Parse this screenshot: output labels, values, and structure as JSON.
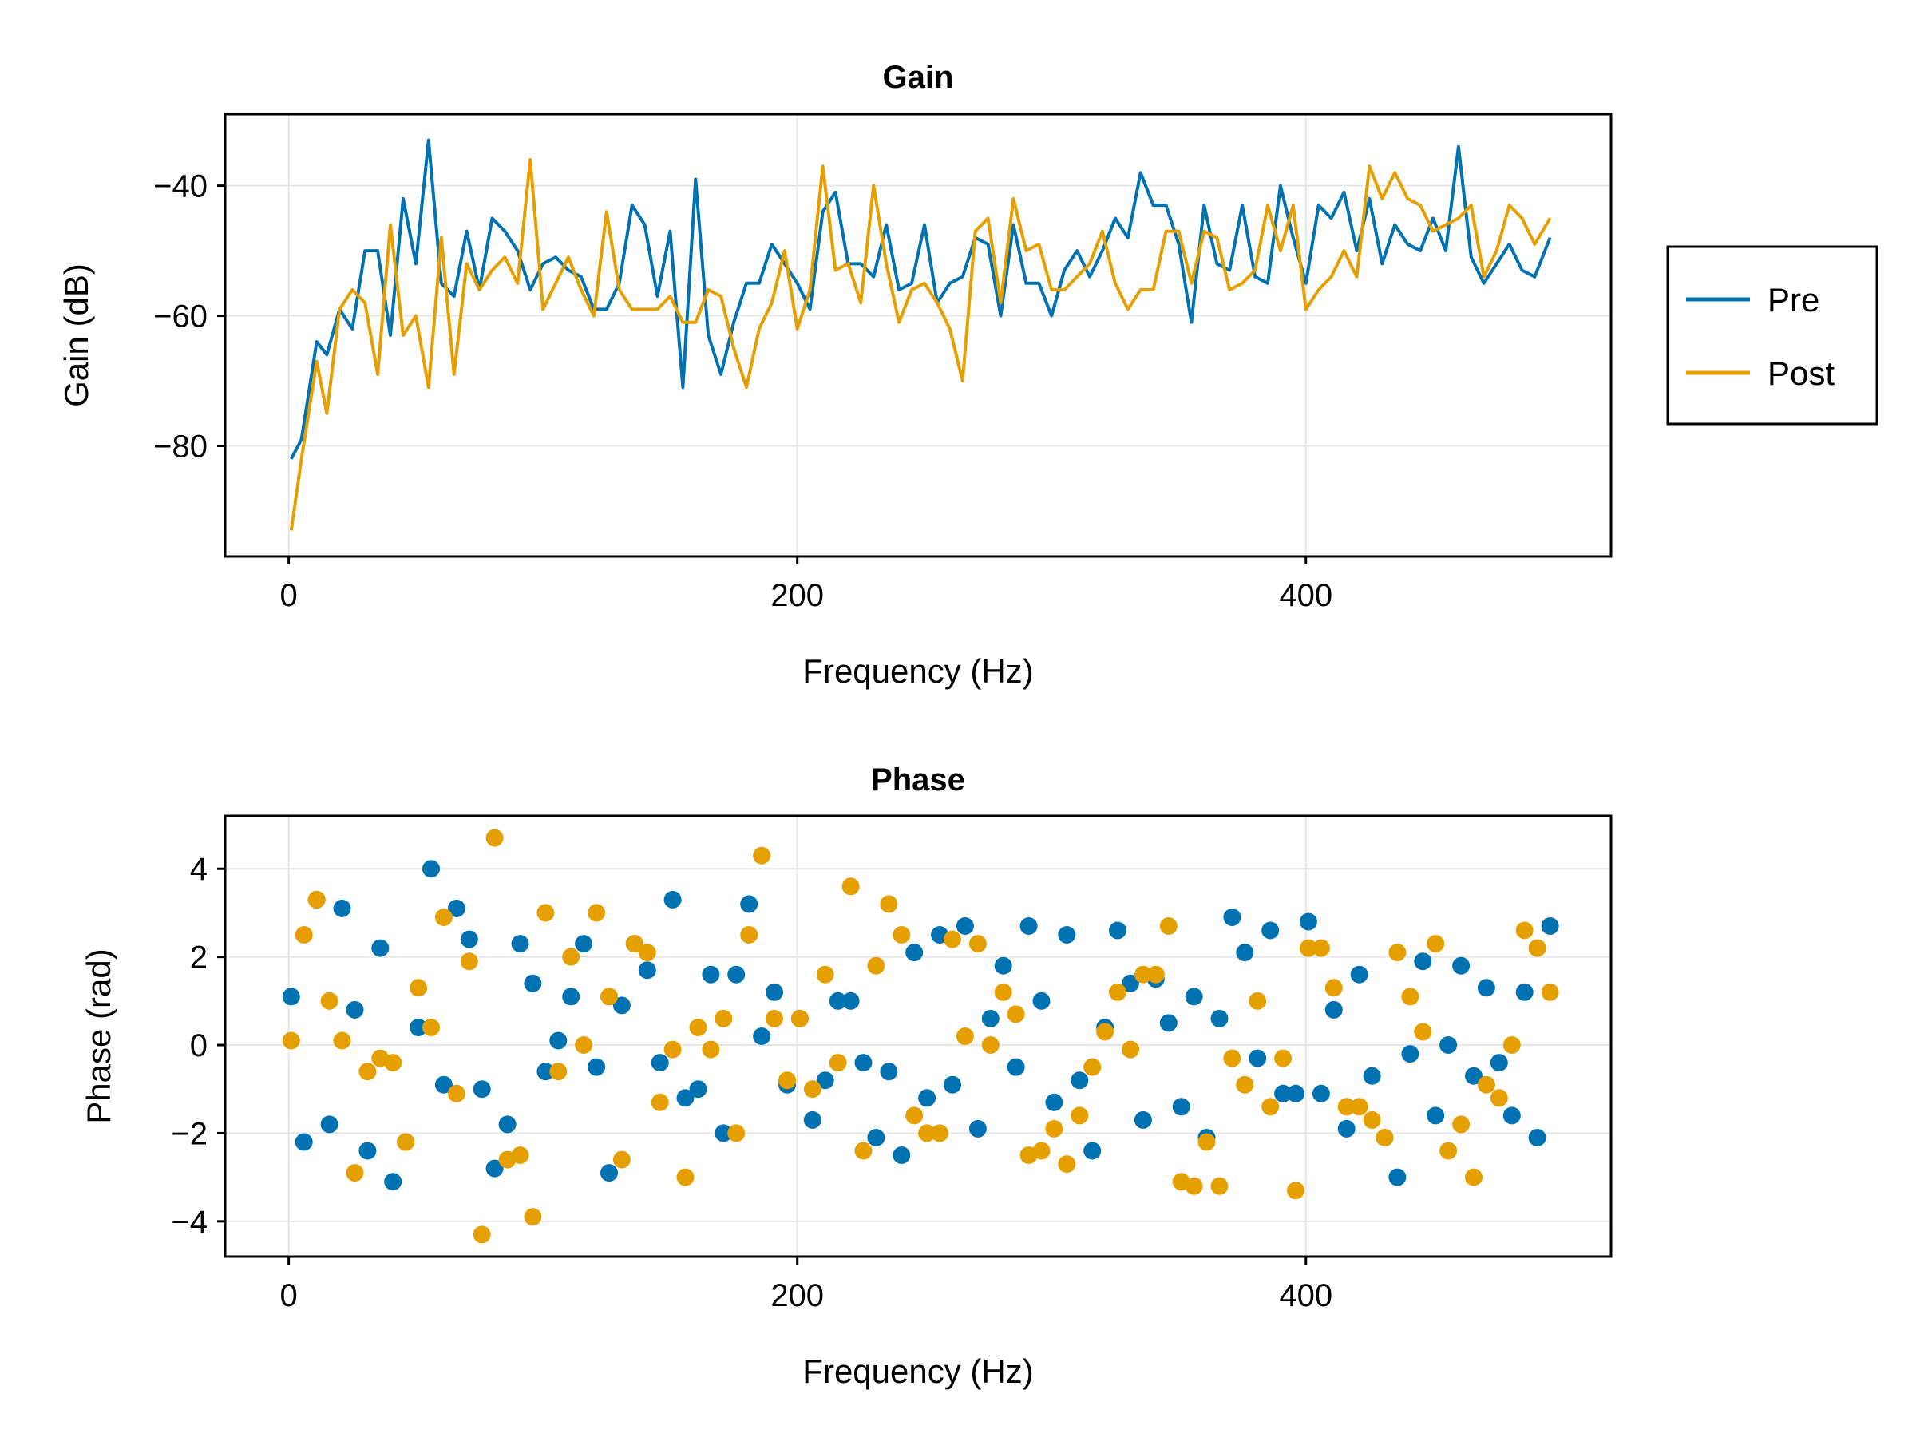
{
  "colors": {
    "pre": "#0072b2",
    "post": "#e69f00",
    "grid": "#e6e6e6",
    "axis": "#000000"
  },
  "legend": {
    "placement": "right",
    "entries": [
      "Pre",
      "Post"
    ]
  },
  "chart_data": [
    {
      "type": "line",
      "title": "Gain",
      "xlabel": "Frequency (Hz)",
      "ylabel": "Gain (dB)",
      "xlim": [
        -25,
        520
      ],
      "ylim": [
        -97,
        -29
      ],
      "xticks": [
        0,
        200,
        400
      ],
      "yticks": [
        -40,
        -60,
        -80
      ],
      "xtick_labels": [
        "0",
        "200",
        "400"
      ],
      "ytick_labels": [
        "−40",
        "−60",
        "−80"
      ],
      "grid": true,
      "x": [
        1,
        5,
        11,
        15,
        20,
        25,
        30,
        35,
        40,
        45,
        50,
        55,
        60,
        65,
        70,
        75,
        80,
        85,
        90,
        95,
        100,
        105,
        110,
        115,
        120,
        125,
        130,
        135,
        140,
        145,
        150,
        155,
        160,
        165,
        170,
        175,
        180,
        185,
        190,
        195,
        200,
        205,
        210,
        215,
        220,
        225,
        230,
        235,
        240,
        245,
        250,
        255,
        260,
        265,
        270,
        275,
        280,
        285,
        290,
        295,
        300,
        305,
        310,
        315,
        320,
        325,
        330,
        335,
        340,
        345,
        350,
        355,
        360,
        365,
        370,
        375,
        380,
        385,
        390,
        395,
        400,
        405,
        410,
        415,
        420,
        425,
        430,
        435,
        440,
        445,
        450,
        455,
        460,
        465,
        470,
        475,
        480,
        485,
        490,
        496
      ],
      "series": [
        {
          "name": "Pre",
          "values": [
            -82,
            -79,
            -64,
            -66,
            -59,
            -62,
            -50,
            -50,
            -63,
            -42,
            -52,
            -33,
            -55,
            -57,
            -47,
            -56,
            -45,
            -47,
            -50,
            -56,
            -52,
            -51,
            -53,
            -54,
            -59,
            -59,
            -55,
            -43,
            -46,
            -57,
            -47,
            -71,
            -39,
            -63,
            -69,
            -61,
            -55,
            -55,
            -49,
            -52,
            -55,
            -59,
            -44,
            -41,
            -52,
            -52,
            -54,
            -46,
            -56,
            -55,
            -46,
            -58,
            -55,
            -54,
            -48,
            -49,
            -60,
            -46,
            -55,
            -55,
            -60,
            -53,
            -50,
            -54,
            -50,
            -45,
            -48,
            -38,
            -43,
            -43,
            -49,
            -61,
            -43,
            -52,
            -53,
            -43,
            -54,
            -55,
            -40,
            -48,
            -55,
            -43,
            -45,
            -41,
            -50,
            -42,
            -52,
            -46,
            -49,
            -50,
            -45,
            -50,
            -34,
            -51,
            -55,
            -52,
            -49,
            -53,
            -54,
            -48
          ]
        },
        {
          "name": "Post",
          "values": [
            -93,
            -82,
            -67,
            -75,
            -59,
            -56,
            -58,
            -69,
            -46,
            -63,
            -60,
            -71,
            -48,
            -69,
            -52,
            -56,
            -53,
            -51,
            -55,
            -36,
            -59,
            -55,
            -51,
            -56,
            -60,
            -44,
            -56,
            -59,
            -59,
            -59,
            -57,
            -61,
            -61,
            -56,
            -57,
            -65,
            -71,
            -62,
            -58,
            -50,
            -62,
            -56,
            -37,
            -53,
            -52,
            -58,
            -40,
            -52,
            -61,
            -56,
            -55,
            -58,
            -62,
            -70,
            -47,
            -45,
            -58,
            -42,
            -50,
            -49,
            -56,
            -56,
            -54,
            -52,
            -47,
            -55,
            -59,
            -56,
            -56,
            -47,
            -47,
            -55,
            -47,
            -48,
            -56,
            -55,
            -53,
            -43,
            -50,
            -43,
            -59,
            -56,
            -54,
            -50,
            -54,
            -37,
            -42,
            -38,
            -42,
            -43,
            -47,
            -46,
            -45,
            -43,
            -54,
            -50,
            -43,
            -45,
            -49,
            -45
          ]
        }
      ]
    },
    {
      "type": "scatter",
      "title": "Phase",
      "xlabel": "Frequency (Hz)",
      "ylabel": "Phase (rad)",
      "xlim": [
        -25,
        520
      ],
      "ylim": [
        -4.8,
        5.2
      ],
      "xticks": [
        0,
        200,
        400
      ],
      "yticks": [
        4,
        2,
        0,
        -2,
        -4
      ],
      "xtick_labels": [
        "0",
        "200",
        "400"
      ],
      "ytick_labels": [
        "4",
        "2",
        "0",
        "−2",
        "−4"
      ],
      "grid": true,
      "x": [
        1,
        6,
        11,
        16,
        21,
        26,
        31,
        36,
        41,
        46,
        51,
        56,
        61,
        66,
        71,
        76,
        81,
        86,
        91,
        96,
        101,
        106,
        111,
        116,
        121,
        126,
        131,
        136,
        141,
        146,
        151,
        156,
        161,
        166,
        171,
        176,
        181,
        186,
        191,
        196,
        201,
        206,
        211,
        216,
        221,
        226,
        231,
        236,
        241,
        246,
        251,
        256,
        261,
        266,
        271,
        276,
        281,
        286,
        291,
        296,
        301,
        306,
        311,
        316,
        321,
        326,
        331,
        336,
        341,
        346,
        351,
        356,
        361,
        366,
        371,
        376,
        381,
        386,
        391,
        396,
        401,
        406,
        411,
        416,
        421,
        426,
        431,
        436,
        441,
        446,
        451,
        456,
        461,
        466,
        471,
        476,
        481,
        486,
        491,
        496
      ],
      "series": [
        {
          "name": "Pre",
          "values": [
            1.1,
            -2.2,
            3.3,
            -1.8,
            3.1,
            0.8,
            -2.4,
            2.2,
            -3.1,
            -2.2,
            0.4,
            4.0,
            -0.9,
            3.1,
            2.4,
            -1.0,
            -2.8,
            -1.8,
            2.3,
            1.4,
            -0.6,
            0.1,
            1.1,
            2.3,
            -0.5,
            -2.9,
            0.9,
            2.3,
            1.7,
            -0.4,
            3.3,
            -1.2,
            -1.0,
            1.6,
            -2.0,
            1.6,
            3.2,
            0.2,
            1.2,
            -0.9,
            0.6,
            -1.7,
            -0.8,
            1.0,
            1.0,
            -0.4,
            -2.1,
            -0.6,
            -2.5,
            2.1,
            -1.2,
            2.5,
            -0.9,
            2.7,
            -1.9,
            0.6,
            1.8,
            -0.5,
            2.7,
            1.0,
            -1.3,
            2.5,
            -0.8,
            -2.4,
            0.4,
            2.6,
            1.4,
            -1.7,
            1.5,
            0.5,
            -1.4,
            1.1,
            -2.1,
            0.6,
            2.9,
            2.1,
            -0.3,
            2.6,
            -1.1,
            -1.1,
            2.8,
            -1.1,
            0.8,
            -1.9,
            1.6,
            -0.7,
            -2.1,
            -3.0,
            -0.2,
            1.9,
            -1.6,
            0.0,
            1.8,
            -0.7,
            1.3,
            -0.4,
            -1.6,
            1.2,
            -2.1,
            2.7
          ]
        },
        {
          "name": "Post",
          "values": [
            0.1,
            2.5,
            3.3,
            1.0,
            0.1,
            -2.9,
            -0.6,
            -0.3,
            -0.4,
            -2.2,
            1.3,
            0.4,
            2.9,
            -1.1,
            1.9,
            -4.3,
            4.7,
            -2.6,
            -2.5,
            -3.9,
            3.0,
            -0.6,
            2.0,
            0.0,
            3.0,
            1.1,
            -2.6,
            2.3,
            2.1,
            -1.3,
            -0.1,
            -3.0,
            0.4,
            -0.1,
            0.6,
            -2.0,
            2.5,
            4.3,
            0.6,
            -0.8,
            0.6,
            -1.0,
            1.6,
            -0.4,
            3.6,
            -2.4,
            1.8,
            3.2,
            2.5,
            -1.6,
            -2.0,
            -2.0,
            2.4,
            0.2,
            2.3,
            0.0,
            1.2,
            0.7,
            -2.5,
            -2.4,
            -1.9,
            -2.7,
            -1.6,
            -0.5,
            0.3,
            1.2,
            -0.1,
            1.6,
            1.6,
            2.7,
            -3.1,
            -3.2,
            -2.2,
            -3.2,
            -0.3,
            -0.9,
            1.0,
            -1.4,
            -0.3,
            -3.3,
            2.2,
            2.2,
            1.3,
            -1.4,
            -1.4,
            -1.7,
            -2.1,
            2.1,
            1.1,
            0.3,
            2.3,
            -2.4,
            -1.8,
            -3.0,
            -0.9,
            -1.2,
            0.0,
            2.6,
            2.2,
            1.2
          ]
        }
      ]
    }
  ]
}
